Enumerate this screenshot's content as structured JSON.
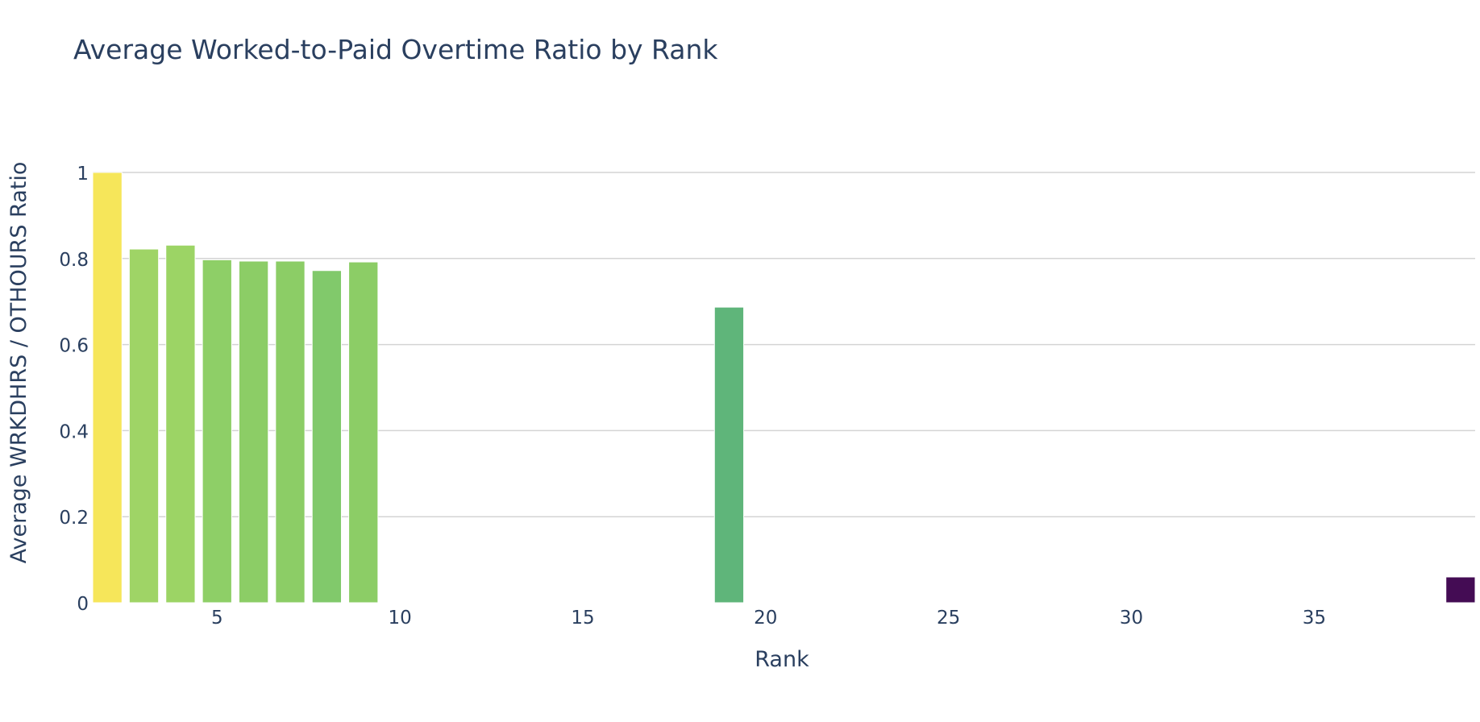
{
  "chart_data": {
    "type": "bar",
    "title": "Average Worked-to-Paid Overtime Ratio by Rank",
    "xlabel": "Rank",
    "ylabel": "Average WRKDHRS / OTHOURS Ratio",
    "xlim": [
      1.6,
      39.4
    ],
    "ylim": [
      0,
      1
    ],
    "x_ticks": [
      5,
      10,
      15,
      20,
      25,
      30,
      35
    ],
    "y_ticks": [
      0,
      0.2,
      0.4,
      0.6,
      0.8,
      1
    ],
    "y_tick_labels": [
      "0",
      "0.2",
      "0.4",
      "0.6",
      "0.8",
      "1"
    ],
    "grid": true,
    "legend": "none",
    "bars": [
      {
        "x": 2,
        "value": 1.0,
        "color": "#f6e65a"
      },
      {
        "x": 3,
        "value": 0.822,
        "color": "#9fd466"
      },
      {
        "x": 4,
        "value": 0.831,
        "color": "#9cd465"
      },
      {
        "x": 5,
        "value": 0.797,
        "color": "#8ecf67"
      },
      {
        "x": 6,
        "value": 0.794,
        "color": "#8ccd66"
      },
      {
        "x": 7,
        "value": 0.794,
        "color": "#8ccd66"
      },
      {
        "x": 8,
        "value": 0.772,
        "color": "#81c96b"
      },
      {
        "x": 9,
        "value": 0.792,
        "color": "#8ccd66"
      },
      {
        "x": 19,
        "value": 0.687,
        "color": "#5fb57a"
      },
      {
        "x": 39,
        "value": 0.0,
        "color": "#440c54"
      }
    ]
  }
}
